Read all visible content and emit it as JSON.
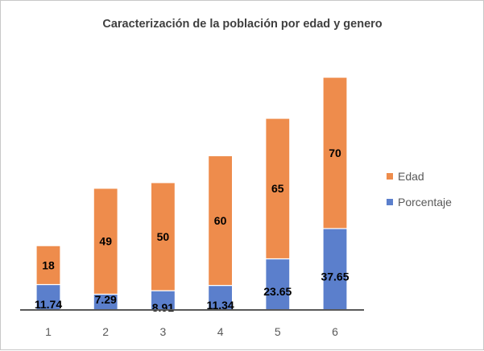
{
  "chart_data": {
    "type": "bar",
    "stacked": true,
    "title": "Caracterización de la población  por edad y genero",
    "xlabel": "",
    "ylabel": "",
    "categories": [
      "1",
      "2",
      "3",
      "4",
      "5",
      "6"
    ],
    "series": [
      {
        "name": "Porcentaje",
        "values": [
          11.74,
          7.29,
          8.91,
          11.34,
          23.65,
          37.65
        ],
        "color": "#5B7FCC"
      },
      {
        "name": "Edad",
        "values": [
          18,
          49,
          50,
          60,
          65,
          70
        ],
        "color": "#EE8C4C"
      }
    ],
    "ylim": [
      0,
      110
    ],
    "grid": false,
    "legend_position": "right"
  }
}
